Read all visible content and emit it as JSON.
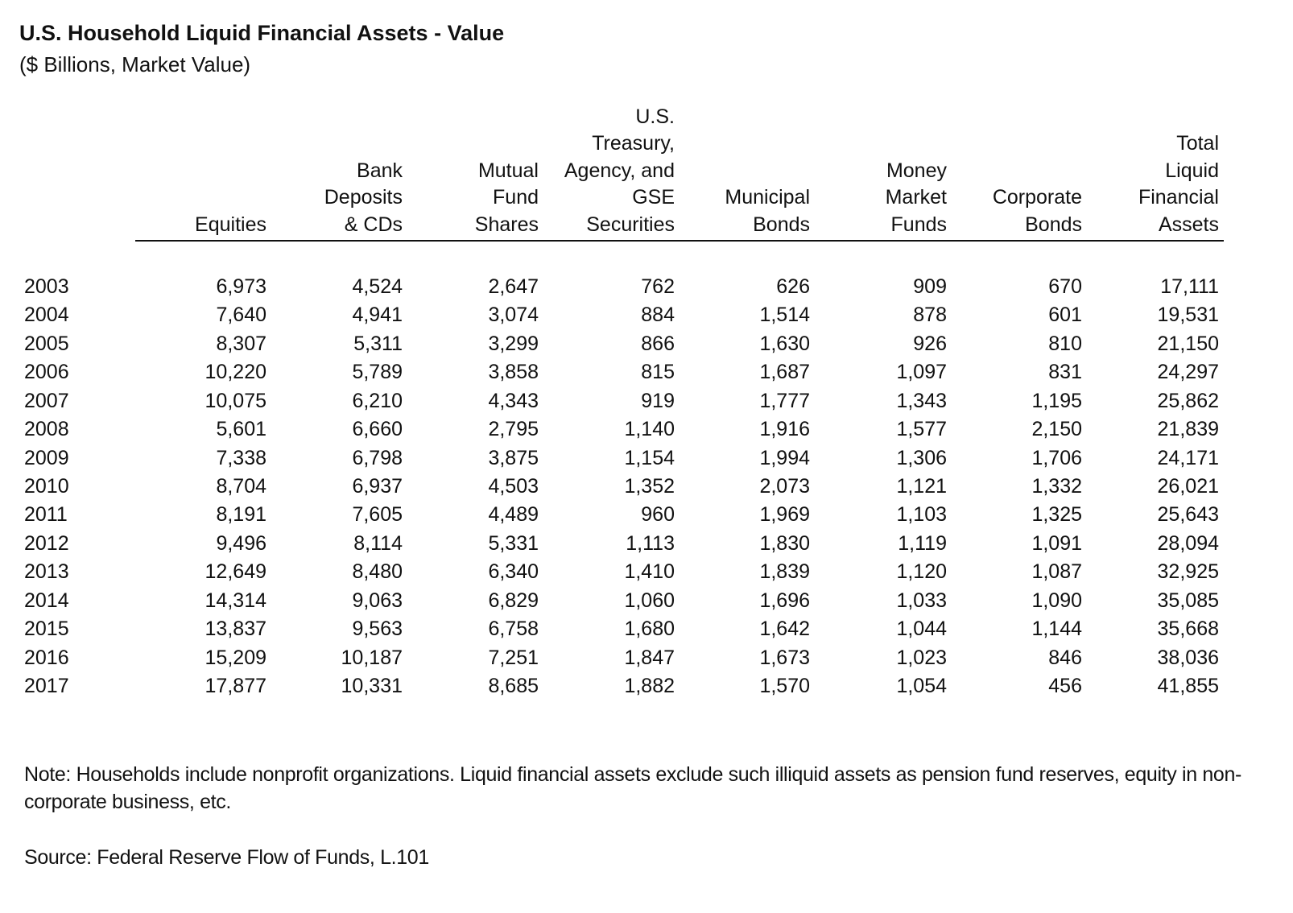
{
  "title": "U.S. Household Liquid Financial Assets - Value",
  "subtitle": "($ Billions, Market Value)",
  "columns": [
    {
      "lines": [
        "Equities"
      ]
    },
    {
      "lines": [
        "Bank",
        "Deposits",
        "& CDs"
      ]
    },
    {
      "lines": [
        "Mutual",
        "Fund",
        "Shares"
      ]
    },
    {
      "lines": [
        "U.S.",
        "Treasury,",
        "Agency, and",
        "GSE",
        "Securities"
      ]
    },
    {
      "lines": [
        "Municipal",
        "Bonds"
      ]
    },
    {
      "lines": [
        "Money",
        "Market",
        "Funds"
      ]
    },
    {
      "lines": [
        "Corporate",
        "Bonds"
      ]
    },
    {
      "lines": [
        "Total",
        "Liquid",
        "Financial",
        "Assets"
      ]
    }
  ],
  "rows": [
    {
      "year": "2003",
      "values": [
        "6,973",
        "4,524",
        "2,647",
        "762",
        "626",
        "909",
        "670",
        "17,111"
      ]
    },
    {
      "year": "2004",
      "values": [
        "7,640",
        "4,941",
        "3,074",
        "884",
        "1,514",
        "878",
        "601",
        "19,531"
      ]
    },
    {
      "year": "2005",
      "values": [
        "8,307",
        "5,311",
        "3,299",
        "866",
        "1,630",
        "926",
        "810",
        "21,150"
      ]
    },
    {
      "year": "2006",
      "values": [
        "10,220",
        "5,789",
        "3,858",
        "815",
        "1,687",
        "1,097",
        "831",
        "24,297"
      ]
    },
    {
      "year": "2007",
      "values": [
        "10,075",
        "6,210",
        "4,343",
        "919",
        "1,777",
        "1,343",
        "1,195",
        "25,862"
      ]
    },
    {
      "year": "2008",
      "values": [
        "5,601",
        "6,660",
        "2,795",
        "1,140",
        "1,916",
        "1,577",
        "2,150",
        "21,839"
      ]
    },
    {
      "year": "2009",
      "values": [
        "7,338",
        "6,798",
        "3,875",
        "1,154",
        "1,994",
        "1,306",
        "1,706",
        "24,171"
      ]
    },
    {
      "year": "2010",
      "values": [
        "8,704",
        "6,937",
        "4,503",
        "1,352",
        "2,073",
        "1,121",
        "1,332",
        "26,021"
      ]
    },
    {
      "year": "2011",
      "values": [
        "8,191",
        "7,605",
        "4,489",
        "960",
        "1,969",
        "1,103",
        "1,325",
        "25,643"
      ]
    },
    {
      "year": "2012",
      "values": [
        "9,496",
        "8,114",
        "5,331",
        "1,113",
        "1,830",
        "1,119",
        "1,091",
        "28,094"
      ]
    },
    {
      "year": "2013",
      "values": [
        "12,649",
        "8,480",
        "6,340",
        "1,410",
        "1,839",
        "1,120",
        "1,087",
        "32,925"
      ]
    },
    {
      "year": "2014",
      "values": [
        "14,314",
        "9,063",
        "6,829",
        "1,060",
        "1,696",
        "1,033",
        "1,090",
        "35,085"
      ]
    },
    {
      "year": "2015",
      "values": [
        "13,837",
        "9,563",
        "6,758",
        "1,680",
        "1,642",
        "1,044",
        "1,144",
        "35,668"
      ]
    },
    {
      "year": "2016",
      "values": [
        "15,209",
        "10,187",
        "7,251",
        "1,847",
        "1,673",
        "1,023",
        "846",
        "38,036"
      ]
    },
    {
      "year": "2017",
      "values": [
        "17,877",
        "10,331",
        "8,685",
        "1,882",
        "1,570",
        "1,054",
        "456",
        "41,855"
      ]
    }
  ],
  "note": "Note: Households include nonprofit organizations. Liquid financial assets exclude such illiquid assets as pension fund reserves, equity in non-corporate business, etc.",
  "source": "Source: Federal Reserve Flow of Funds, L.101"
}
